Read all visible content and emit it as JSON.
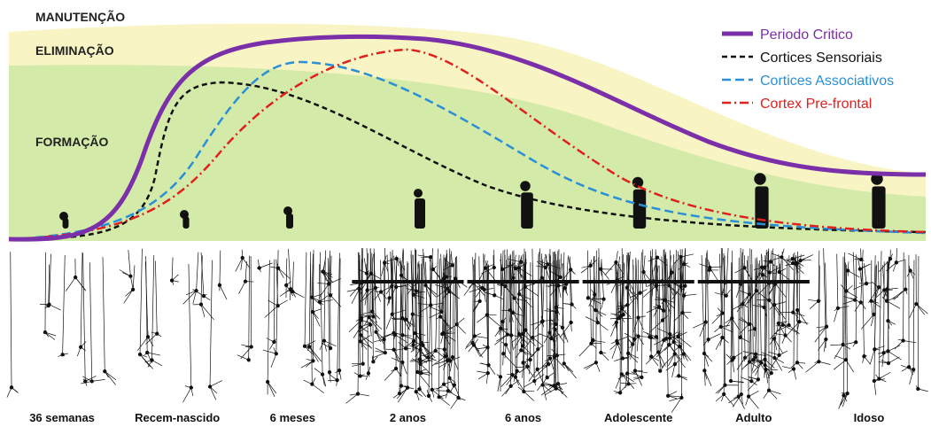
{
  "zones": [
    "MANUTENÇÃO",
    "ELIMINAÇÃO",
    "FORMAÇÃO"
  ],
  "legend": [
    {
      "label": "Periodo Critico",
      "color": "#7b2fa8"
    },
    {
      "label": "Cortices Sensoriais",
      "color": "#111111"
    },
    {
      "label": "Cortices Associativos",
      "color": "#2a8fd6"
    },
    {
      "label": "Cortex Pre-frontal",
      "color": "#e0201c"
    }
  ],
  "stages": [
    "36 semanas",
    "Recem-nascido",
    "6 meses",
    "2 anos",
    "6 anos",
    "Adolescente",
    "Adulto",
    "Idoso"
  ]
}
